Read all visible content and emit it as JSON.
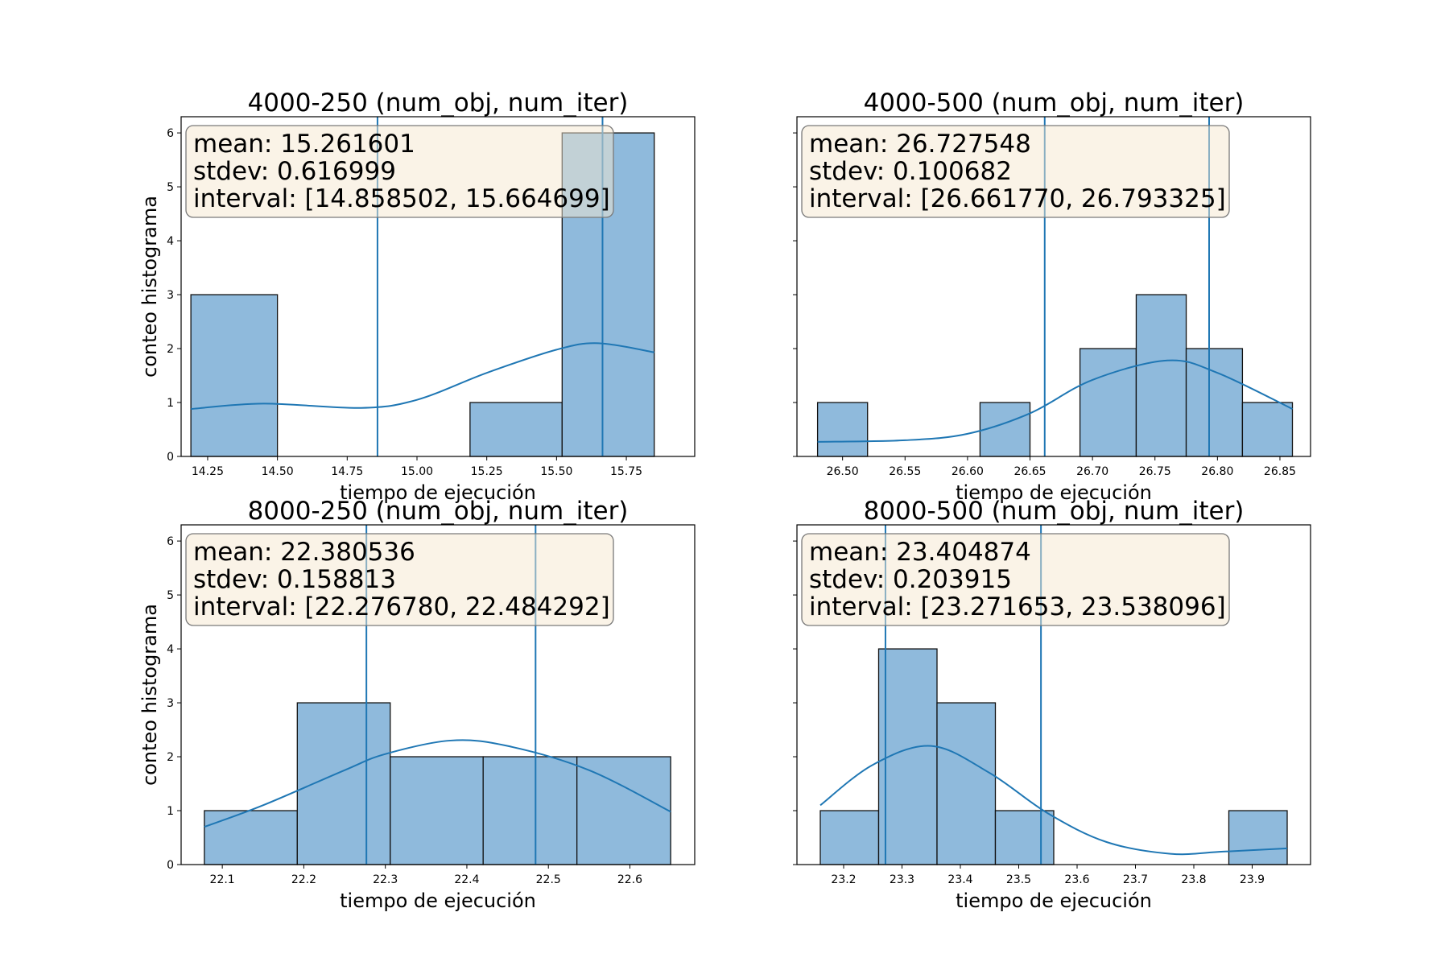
{
  "figure": {
    "ylabel": "conteo histograma",
    "xlabel": "tiempo de ejecución"
  },
  "colors": {
    "bar_fill": "#8fbadc",
    "bar_edge": "#111111",
    "line": "#1f77b4",
    "box_fill": "#f6e8d0",
    "box_edge": "#7a7a7a"
  },
  "chart_data": [
    {
      "type": "bar",
      "title": "4000-250 (num_obj, num_iter)",
      "xlabel": "tiempo de ejecución",
      "ylabel": "conteo histograma",
      "xlim": [
        14.155,
        15.995
      ],
      "ylim": [
        0,
        6.3
      ],
      "xticks": [
        14.25,
        14.5,
        14.75,
        15.0,
        15.25,
        15.5,
        15.75
      ],
      "xtick_labels": [
        "14.25",
        "14.50",
        "14.75",
        "15.00",
        "15.25",
        "15.50",
        "15.75"
      ],
      "yticks": [
        0,
        1,
        2,
        3,
        4,
        5,
        6
      ],
      "bins": [
        {
          "x0": 14.19,
          "x1": 14.5,
          "count": 3
        },
        {
          "x0": 14.5,
          "x1": 14.83,
          "count": 0
        },
        {
          "x0": 14.83,
          "x1": 15.19,
          "count": 0
        },
        {
          "x0": 15.19,
          "x1": 15.52,
          "count": 1
        },
        {
          "x0": 15.52,
          "x1": 15.85,
          "count": 6
        }
      ],
      "kde": [
        [
          14.19,
          0.88
        ],
        [
          14.45,
          0.98
        ],
        [
          14.8,
          0.9
        ],
        [
          15.0,
          1.05
        ],
        [
          15.25,
          1.55
        ],
        [
          15.5,
          1.98
        ],
        [
          15.65,
          2.1
        ],
        [
          15.85,
          1.93
        ]
      ],
      "vlines": [
        14.858502,
        15.664699
      ],
      "stats": {
        "mean": "mean: 15.261601",
        "stdev": "stdev: 0.616999",
        "interval": "interval: [14.858502, 15.664699]"
      }
    },
    {
      "type": "bar",
      "title": "4000-500 (num_obj, num_iter)",
      "xlabel": "tiempo de ejecución",
      "ylabel": "conteo histograma",
      "xlim": [
        26.4635,
        26.8745
      ],
      "ylim": [
        0,
        6.3
      ],
      "xticks": [
        26.5,
        26.55,
        26.6,
        26.65,
        26.7,
        26.75,
        26.8,
        26.85
      ],
      "xtick_labels": [
        "26.50",
        "26.55",
        "26.60",
        "26.65",
        "26.70",
        "26.75",
        "26.80",
        "26.85"
      ],
      "yticks": [
        0,
        1,
        2,
        3,
        4,
        5,
        6
      ],
      "bins": [
        {
          "x0": 26.48,
          "x1": 26.52,
          "count": 1
        },
        {
          "x0": 26.52,
          "x1": 26.56,
          "count": 0
        },
        {
          "x0": 26.56,
          "x1": 26.61,
          "count": 0
        },
        {
          "x0": 26.61,
          "x1": 26.65,
          "count": 1
        },
        {
          "x0": 26.65,
          "x1": 26.69,
          "count": 0
        },
        {
          "x0": 26.69,
          "x1": 26.735,
          "count": 2
        },
        {
          "x0": 26.735,
          "x1": 26.775,
          "count": 3
        },
        {
          "x0": 26.775,
          "x1": 26.82,
          "count": 2
        },
        {
          "x0": 26.82,
          "x1": 26.86,
          "count": 1
        }
      ],
      "kde": [
        [
          26.48,
          0.27
        ],
        [
          26.55,
          0.3
        ],
        [
          26.6,
          0.42
        ],
        [
          26.65,
          0.8
        ],
        [
          26.7,
          1.42
        ],
        [
          26.76,
          1.78
        ],
        [
          26.8,
          1.55
        ],
        [
          26.86,
          0.88
        ]
      ],
      "vlines": [
        26.66177,
        26.793325
      ],
      "stats": {
        "mean": "mean: 26.727548",
        "stdev": "stdev: 0.100682",
        "interval": "interval: [26.661770, 26.793325]"
      }
    },
    {
      "type": "bar",
      "title": "8000-250 (num_obj, num_iter)",
      "xlabel": "tiempo de ejecución",
      "ylabel": "conteo histograma",
      "xlim": [
        22.0495,
        22.6795
      ],
      "ylim": [
        0,
        6.3
      ],
      "xticks": [
        22.1,
        22.2,
        22.3,
        22.4,
        22.5,
        22.6
      ],
      "xtick_labels": [
        "22.1",
        "22.2",
        "22.3",
        "22.4",
        "22.5",
        "22.6"
      ],
      "yticks": [
        0,
        1,
        2,
        3,
        4,
        5,
        6
      ],
      "bins": [
        {
          "x0": 22.078,
          "x1": 22.192,
          "count": 1
        },
        {
          "x0": 22.192,
          "x1": 22.306,
          "count": 3
        },
        {
          "x0": 22.306,
          "x1": 22.42,
          "count": 2
        },
        {
          "x0": 22.42,
          "x1": 22.535,
          "count": 2
        },
        {
          "x0": 22.535,
          "x1": 22.65,
          "count": 2
        }
      ],
      "kde": [
        [
          22.078,
          0.7
        ],
        [
          22.15,
          1.1
        ],
        [
          22.25,
          1.75
        ],
        [
          22.3,
          2.05
        ],
        [
          22.38,
          2.3
        ],
        [
          22.45,
          2.2
        ],
        [
          22.55,
          1.75
        ],
        [
          22.65,
          0.98
        ]
      ],
      "vlines": [
        22.27678,
        22.484292
      ],
      "stats": {
        "mean": "mean: 22.380536",
        "stdev": "stdev: 0.158813",
        "interval": "interval: [22.276780, 22.484292]"
      }
    },
    {
      "type": "bar",
      "title": "8000-500 (num_obj, num_iter)",
      "xlabel": "tiempo de ejecución",
      "ylabel": "conteo histograma",
      "xlim": [
        23.12,
        24.0
      ],
      "ylim": [
        0,
        6.3
      ],
      "xticks": [
        23.2,
        23.3,
        23.4,
        23.5,
        23.6,
        23.7,
        23.8,
        23.9
      ],
      "xtick_labels": [
        "23.2",
        "23.3",
        "23.4",
        "23.5",
        "23.6",
        "23.7",
        "23.8",
        "23.9"
      ],
      "yticks": [
        0,
        1,
        2,
        3,
        4,
        5,
        6
      ],
      "bins": [
        {
          "x0": 23.16,
          "x1": 23.26,
          "count": 1
        },
        {
          "x0": 23.26,
          "x1": 23.36,
          "count": 4
        },
        {
          "x0": 23.36,
          "x1": 23.46,
          "count": 3
        },
        {
          "x0": 23.46,
          "x1": 23.56,
          "count": 1
        },
        {
          "x0": 23.56,
          "x1": 23.66,
          "count": 0
        },
        {
          "x0": 23.66,
          "x1": 23.76,
          "count": 0
        },
        {
          "x0": 23.76,
          "x1": 23.86,
          "count": 0
        },
        {
          "x0": 23.86,
          "x1": 23.96,
          "count": 1
        }
      ],
      "kde": [
        [
          23.16,
          1.1
        ],
        [
          23.25,
          1.85
        ],
        [
          23.35,
          2.2
        ],
        [
          23.45,
          1.7
        ],
        [
          23.55,
          0.95
        ],
        [
          23.65,
          0.42
        ],
        [
          23.76,
          0.2
        ],
        [
          23.85,
          0.24
        ],
        [
          23.96,
          0.3
        ]
      ],
      "vlines": [
        23.271653,
        23.538096
      ],
      "stats": {
        "mean": "mean: 23.404874",
        "stdev": "stdev: 0.203915",
        "interval": "interval: [23.271653, 23.538096]"
      }
    }
  ]
}
